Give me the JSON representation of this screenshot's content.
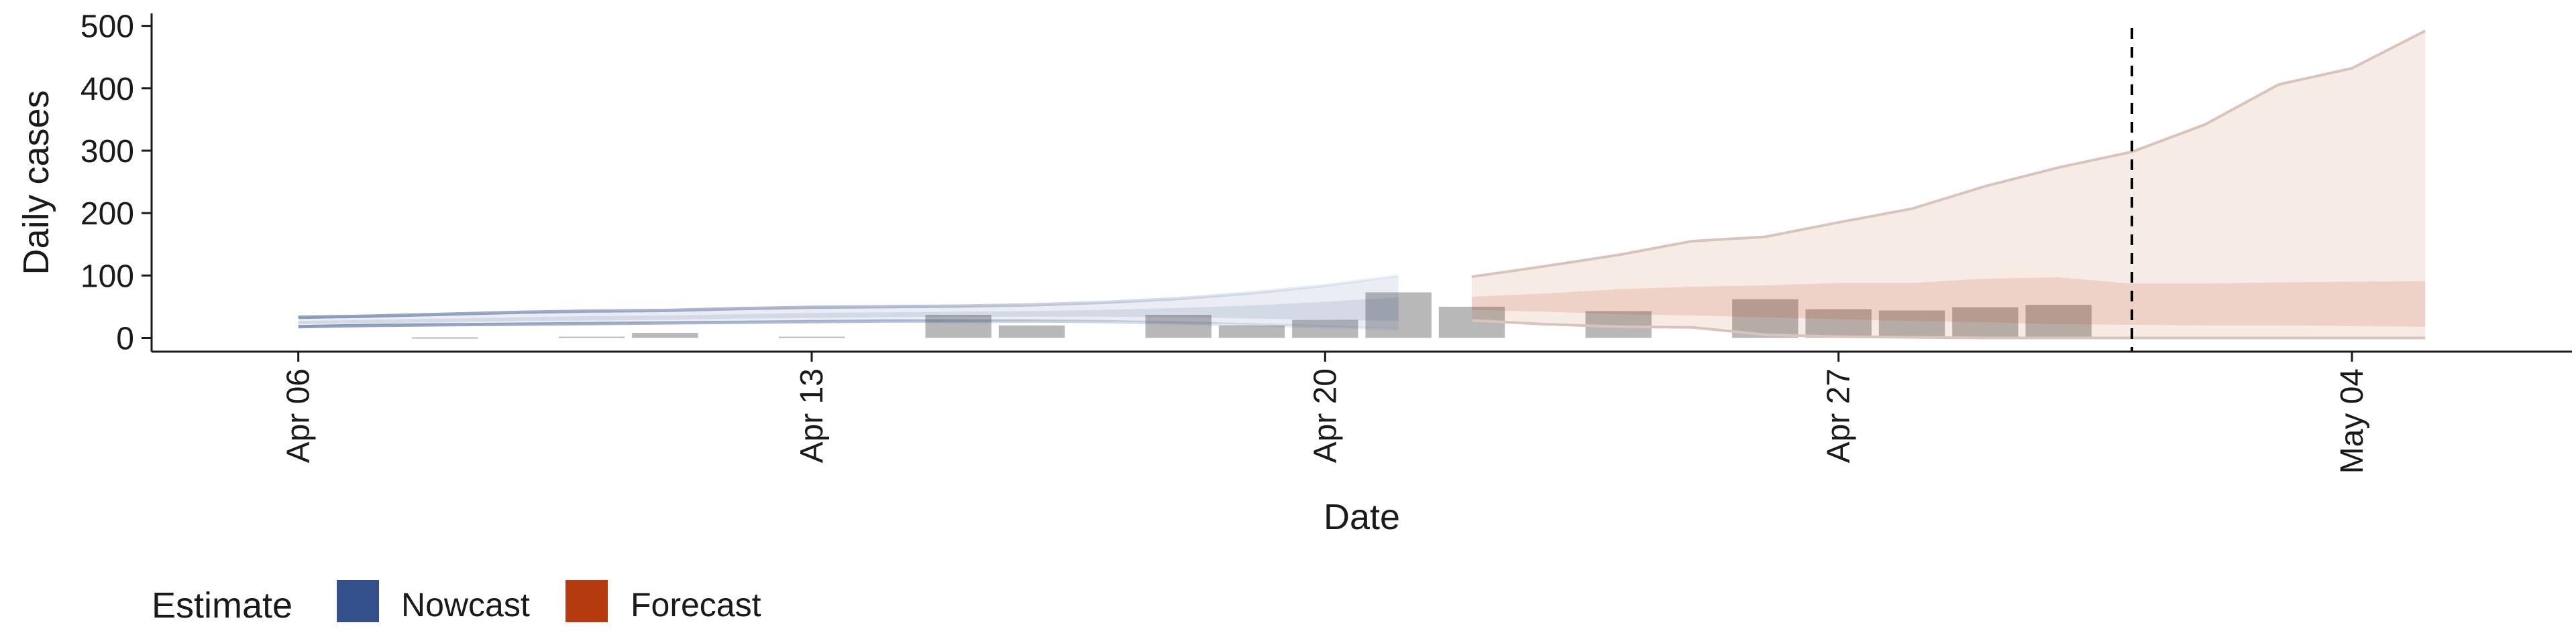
{
  "chart_data": {
    "type": "area",
    "title": "",
    "xlabel": "Date",
    "ylabel": "Daily cases",
    "x_tick_labels": [
      "Apr 06",
      "Apr 13",
      "Apr 20",
      "Apr 27",
      "May 04"
    ],
    "x_tick_dates": [
      "2020-04-06",
      "2020-04-13",
      "2020-04-20",
      "2020-04-27",
      "2020-05-04"
    ],
    "y_tick_labels": [
      "0",
      "100",
      "200",
      "300",
      "400",
      "500"
    ],
    "y_ticks": [
      0,
      100,
      200,
      300,
      400,
      500
    ],
    "xlim": [
      "2020-04-04",
      "2020-05-07"
    ],
    "ylim": [
      -22,
      520
    ],
    "grid": false,
    "legend": {
      "title": "Estimate",
      "position": "bottom-left",
      "entries": [
        {
          "label": "Nowcast",
          "color": "#34508c"
        },
        {
          "label": "Forecast",
          "color": "#b53a0e"
        }
      ]
    },
    "reference_line": {
      "date": "2020-05-01",
      "style": "dashed"
    },
    "colors": {
      "nowcast": "#34508c",
      "forecast": "#b53a0e",
      "bars": "#9a9a9a",
      "vline": "#000000"
    },
    "bars": [
      {
        "date": "2020-04-08",
        "value": 1
      },
      {
        "date": "2020-04-10",
        "value": 2
      },
      {
        "date": "2020-04-11",
        "value": 8
      },
      {
        "date": "2020-04-13",
        "value": 2
      },
      {
        "date": "2020-04-15",
        "value": 37
      },
      {
        "date": "2020-04-16",
        "value": 20
      },
      {
        "date": "2020-04-18",
        "value": 37
      },
      {
        "date": "2020-04-19",
        "value": 20
      },
      {
        "date": "2020-04-20",
        "value": 29
      },
      {
        "date": "2020-04-21",
        "value": 73
      },
      {
        "date": "2020-04-22",
        "value": 50
      },
      {
        "date": "2020-04-24",
        "value": 43
      },
      {
        "date": "2020-04-26",
        "value": 62
      },
      {
        "date": "2020-04-27",
        "value": 46
      },
      {
        "date": "2020-04-28",
        "value": 44
      },
      {
        "date": "2020-04-29",
        "value": 49
      },
      {
        "date": "2020-04-30",
        "value": 53
      }
    ],
    "series": [
      {
        "name": "Nowcast",
        "dates": [
          "2020-04-06",
          "2020-04-07",
          "2020-04-08",
          "2020-04-09",
          "2020-04-10",
          "2020-04-11",
          "2020-04-12",
          "2020-04-13",
          "2020-04-14",
          "2020-04-15",
          "2020-04-16",
          "2020-04-17",
          "2020-04-18",
          "2020-04-19",
          "2020-04-20",
          "2020-04-21"
        ],
        "outer_upper": [
          33,
          35,
          38,
          41,
          43,
          44,
          47,
          49,
          50,
          51,
          53,
          57,
          63,
          72,
          84,
          100
        ],
        "outer_lower": [
          18,
          20,
          21,
          22,
          23,
          24,
          25,
          26,
          27,
          27,
          27,
          26,
          24,
          21,
          18,
          14
        ],
        "inner_upper": [
          27,
          29,
          31,
          33,
          35,
          36,
          38,
          40,
          41,
          42,
          43,
          45,
          48,
          52,
          58,
          65
        ],
        "inner_lower": [
          22,
          24,
          25,
          27,
          28,
          29,
          31,
          32,
          33,
          34,
          34,
          34,
          33,
          31,
          29,
          27
        ]
      },
      {
        "name": "Forecast",
        "dates": [
          "2020-04-22",
          "2020-04-23",
          "2020-04-24",
          "2020-04-25",
          "2020-04-26",
          "2020-04-27",
          "2020-04-28",
          "2020-04-29",
          "2020-04-30",
          "2020-05-01",
          "2020-05-02",
          "2020-05-03",
          "2020-05-04",
          "2020-05-05"
        ],
        "outer_upper": [
          98,
          115,
          133,
          155,
          162,
          185,
          207,
          243,
          273,
          298,
          342,
          406,
          432,
          492
        ],
        "outer_lower": [
          28,
          22,
          18,
          17,
          5,
          2,
          1,
          0,
          0,
          0,
          0,
          0,
          0,
          0
        ],
        "inner_upper": [
          66,
          71,
          78,
          82,
          84,
          88,
          88,
          95,
          97,
          87,
          87,
          89,
          90,
          91
        ],
        "inner_lower": [
          45,
          42,
          38,
          36,
          33,
          30,
          27,
          25,
          22,
          21,
          20,
          20,
          19,
          18
        ]
      }
    ]
  }
}
